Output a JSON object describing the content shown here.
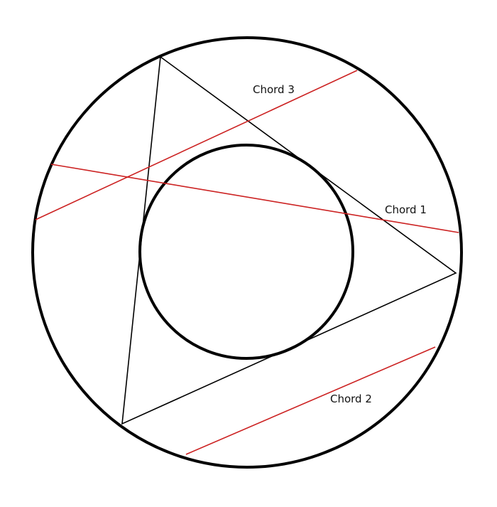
{
  "diagram": {
    "colors": {
      "background": "#ffffff",
      "circle_stroke": "#000000",
      "triangle_stroke": "#000000",
      "chord_stroke": "#cc2222",
      "label_text": "#111111"
    },
    "labels": {
      "chord1": "Chord 1",
      "chord2": "Chord 2",
      "chord3": "Chord 3"
    }
  }
}
